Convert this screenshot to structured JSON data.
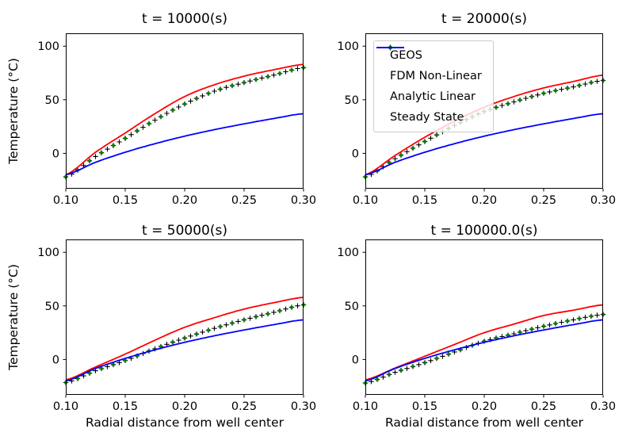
{
  "figure": {
    "xlabel": "Radial distance from well center",
    "ylabel": "Temperature (°C)",
    "background": "#ffffff"
  },
  "legend": {
    "position": "upper-left-of-second-subplot",
    "entries": [
      {
        "label": "GEOS",
        "marker": "plus",
        "color": "#000000"
      },
      {
        "label": "FDM Non-Linear",
        "marker": "dot",
        "color": "#008000"
      },
      {
        "label": "Analytic Linear",
        "marker": "line",
        "color": "#ff0000"
      },
      {
        "label": "Steady State",
        "marker": "line",
        "color": "#0000ff"
      }
    ]
  },
  "chart_data": [
    {
      "type": "line",
      "title": "t = 10000(s)",
      "xlabel": "Radial distance from well center",
      "ylabel": "Temperature (°C)",
      "xlim": [
        0.1,
        0.3
      ],
      "ylim": [
        -33,
        112
      ],
      "grid": false,
      "xticks": {
        "values": [
          0.1,
          0.15,
          0.2,
          0.25,
          0.3
        ],
        "labels": [
          "0.10",
          "0.15",
          "0.20",
          "0.25",
          "0.30"
        ]
      },
      "yticks": {
        "values": [
          0,
          50,
          100
        ],
        "labels": [
          "0",
          "50",
          "100"
        ]
      },
      "x": [
        0.1,
        0.125,
        0.15,
        0.175,
        0.2,
        0.225,
        0.25,
        0.275,
        0.3
      ],
      "series": [
        {
          "name": "GEOS",
          "style": "plus-markers",
          "color": "#000000",
          "marker_step": 0.005,
          "values": [
            -22,
            -3,
            14,
            31,
            46,
            58,
            66,
            73,
            80
          ]
        },
        {
          "name": "FDM Non-Linear",
          "style": "dot-markers",
          "color": "#008000",
          "marker_step": 0.01,
          "values": [
            -22,
            -3,
            14,
            31,
            46,
            58,
            66,
            73,
            80
          ]
        },
        {
          "name": "Analytic Linear",
          "style": "line",
          "color": "#ff0000",
          "values": [
            -20,
            1,
            19,
            37,
            53,
            64,
            72,
            78,
            83
          ]
        },
        {
          "name": "Steady State",
          "style": "line",
          "color": "#0000ff",
          "values": [
            -20,
            -8.4,
            1,
            9,
            16,
            22.1,
            27.5,
            32.5,
            37
          ]
        }
      ]
    },
    {
      "type": "line",
      "title": "t = 20000(s)",
      "xlabel": "Radial distance from well center",
      "ylabel": "Temperature (°C)",
      "xlim": [
        0.1,
        0.3
      ],
      "ylim": [
        -33,
        112
      ],
      "grid": false,
      "xticks": {
        "values": [
          0.1,
          0.15,
          0.2,
          0.25,
          0.3
        ],
        "labels": [
          "0.10",
          "0.15",
          "0.20",
          "0.25",
          "0.30"
        ]
      },
      "yticks": {
        "values": [
          0,
          50,
          100
        ],
        "labels": [
          "0",
          "50",
          "100"
        ]
      },
      "x": [
        0.1,
        0.125,
        0.15,
        0.175,
        0.2,
        0.225,
        0.25,
        0.275,
        0.3
      ],
      "series": [
        {
          "name": "GEOS",
          "style": "plus-markers",
          "color": "#000000",
          "marker_step": 0.005,
          "values": [
            -22,
            -5,
            11,
            26,
            39,
            48,
            56,
            62,
            68
          ]
        },
        {
          "name": "FDM Non-Linear",
          "style": "dot-markers",
          "color": "#008000",
          "marker_step": 0.01,
          "values": [
            -22,
            -5,
            11,
            26,
            39,
            48,
            56,
            62,
            68
          ]
        },
        {
          "name": "Analytic Linear",
          "style": "line",
          "color": "#ff0000",
          "values": [
            -20,
            -2,
            15,
            30,
            43,
            53,
            61,
            67,
            73
          ]
        },
        {
          "name": "Steady State",
          "style": "line",
          "color": "#0000ff",
          "values": [
            -20,
            -8.4,
            1,
            9,
            16,
            22.1,
            27.5,
            32.5,
            37
          ]
        }
      ]
    },
    {
      "type": "line",
      "title": "t = 50000(s)",
      "xlabel": "Radial distance from well center",
      "ylabel": "Temperature (°C)",
      "xlim": [
        0.1,
        0.3
      ],
      "ylim": [
        -33,
        112
      ],
      "grid": false,
      "xticks": {
        "values": [
          0.1,
          0.15,
          0.2,
          0.25,
          0.3
        ],
        "labels": [
          "0.10",
          "0.15",
          "0.20",
          "0.25",
          "0.30"
        ]
      },
      "yticks": {
        "values": [
          0,
          50,
          100
        ],
        "labels": [
          "0",
          "50",
          "100"
        ]
      },
      "x": [
        0.1,
        0.125,
        0.15,
        0.175,
        0.2,
        0.225,
        0.25,
        0.275,
        0.3
      ],
      "series": [
        {
          "name": "GEOS",
          "style": "plus-markers",
          "color": "#000000",
          "marker_step": 0.005,
          "values": [
            -21.5,
            -10.5,
            -1,
            10,
            20,
            29,
            37,
            44,
            51
          ]
        },
        {
          "name": "FDM Non-Linear",
          "style": "dot-markers",
          "color": "#008000",
          "marker_step": 0.01,
          "values": [
            -21.5,
            -10.5,
            -1,
            10,
            20,
            29,
            37,
            44,
            51
          ]
        },
        {
          "name": "Analytic Linear",
          "style": "line",
          "color": "#ff0000",
          "values": [
            -19,
            -7,
            5,
            18,
            30,
            39,
            47,
            53,
            58
          ]
        },
        {
          "name": "Steady State",
          "style": "line",
          "color": "#0000ff",
          "values": [
            -20,
            -8.4,
            1,
            9,
            16,
            22.1,
            27.5,
            32.5,
            37
          ]
        }
      ]
    },
    {
      "type": "line",
      "title": "t = 100000.0(s)",
      "xlabel": "Radial distance from well center",
      "ylabel": "Temperature (°C)",
      "xlim": [
        0.1,
        0.3
      ],
      "ylim": [
        -33,
        112
      ],
      "grid": false,
      "xticks": {
        "values": [
          0.1,
          0.15,
          0.2,
          0.25,
          0.3
        ],
        "labels": [
          "0.10",
          "0.15",
          "0.20",
          "0.25",
          "0.30"
        ]
      },
      "yticks": {
        "values": [
          0,
          50,
          100
        ],
        "labels": [
          "0",
          "50",
          "100"
        ]
      },
      "x": [
        0.1,
        0.125,
        0.15,
        0.175,
        0.2,
        0.225,
        0.25,
        0.275,
        0.3
      ],
      "series": [
        {
          "name": "GEOS",
          "style": "plus-markers",
          "color": "#000000",
          "marker_step": 0.005,
          "values": [
            -22,
            -12,
            -3,
            7,
            17,
            24,
            31,
            37,
            42
          ]
        },
        {
          "name": "FDM Non-Linear",
          "style": "dot-markers",
          "color": "#008000",
          "marker_step": 0.01,
          "values": [
            -22,
            -12,
            -3,
            7,
            17,
            24,
            31,
            37,
            42
          ]
        },
        {
          "name": "Analytic Linear",
          "style": "line",
          "color": "#ff0000",
          "values": [
            -19,
            -8,
            3,
            14,
            25,
            33,
            41,
            46,
            51
          ]
        },
        {
          "name": "Steady State",
          "style": "line",
          "color": "#0000ff",
          "values": [
            -20,
            -8.4,
            1,
            9,
            16,
            22.1,
            27.5,
            32.5,
            37
          ]
        }
      ]
    }
  ]
}
